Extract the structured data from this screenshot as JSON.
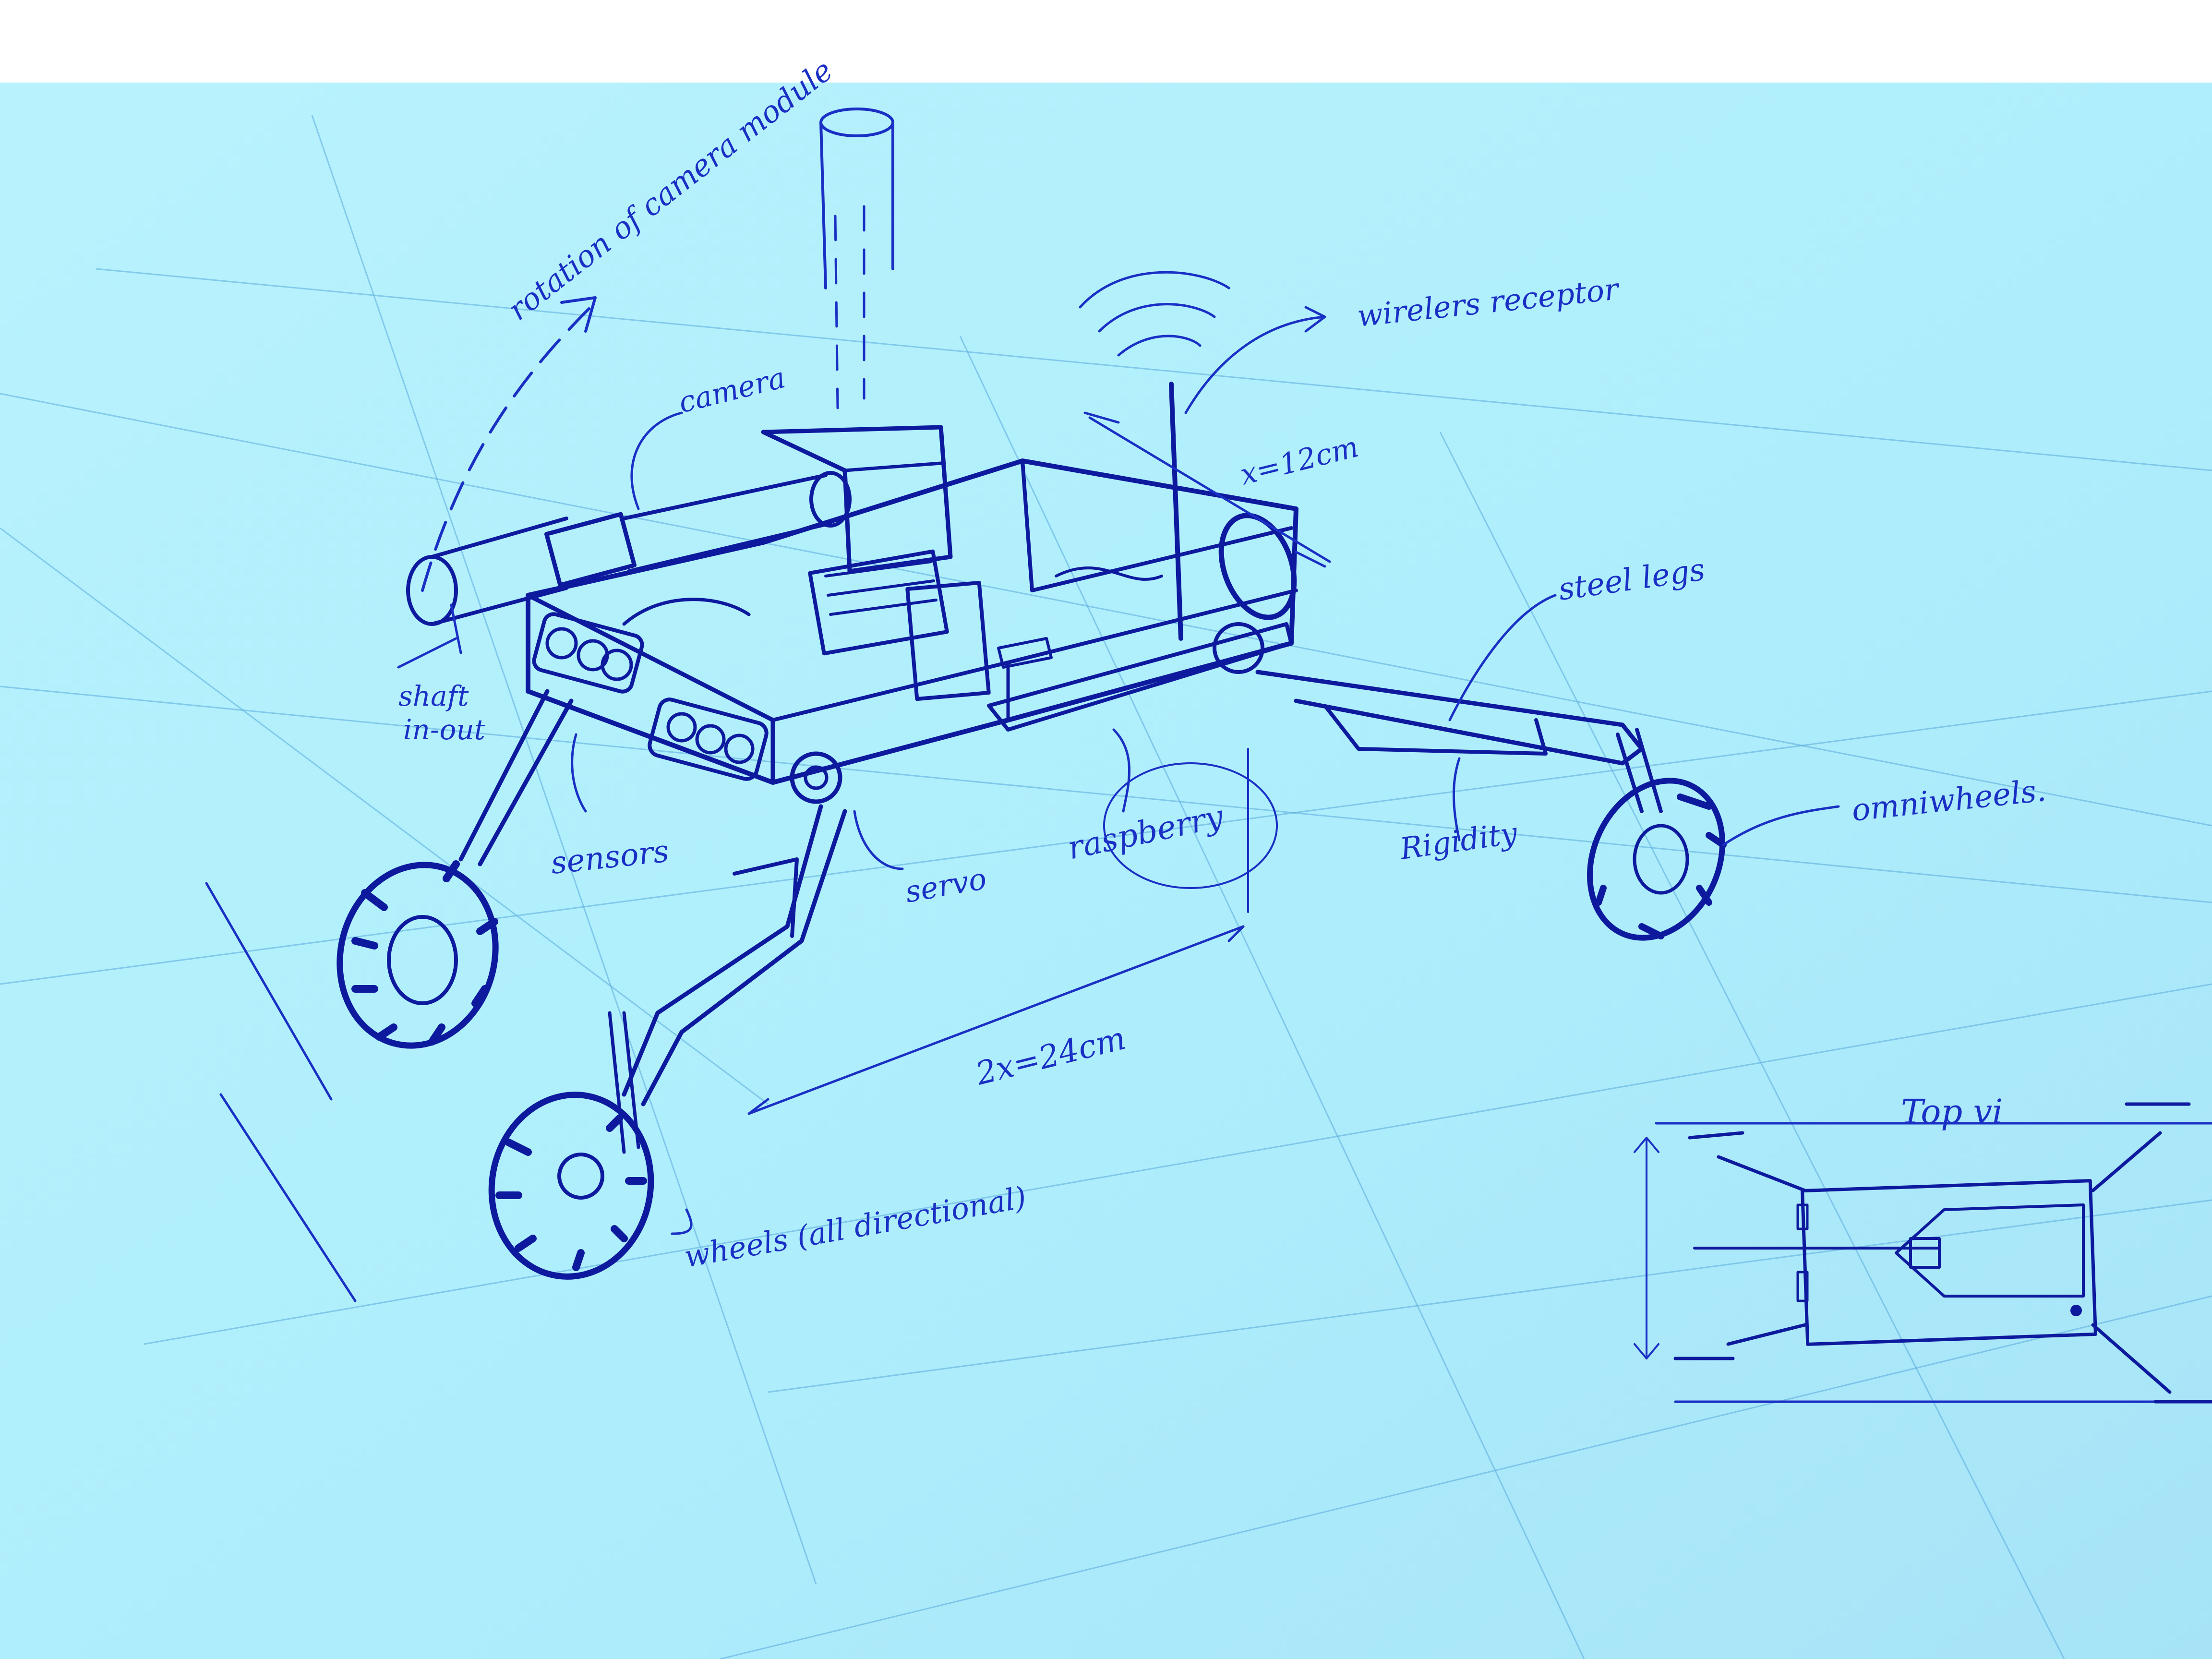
{
  "labels": {
    "rotation": "rotation of camera module",
    "camera": "camera",
    "wireless": "wirelers receptor",
    "dimension_x": "x=12cm",
    "steel_legs": "steel legs",
    "shaft": "shaft",
    "shaft2": "in-out",
    "sensors": "sensors",
    "servo": "servo",
    "raspberry": "raspberry",
    "rigidity": "Rigidity",
    "omniwheels": "omniwheels.",
    "dimension_2x": "2x=24cm",
    "wheels": "wheels (all directional)",
    "top_view": "Top vi"
  },
  "colors": {
    "paper": "#aeeefc",
    "ink": "#1a2fc4",
    "ink_dark": "#0e1a9e",
    "grid": "#5aa9dc"
  }
}
